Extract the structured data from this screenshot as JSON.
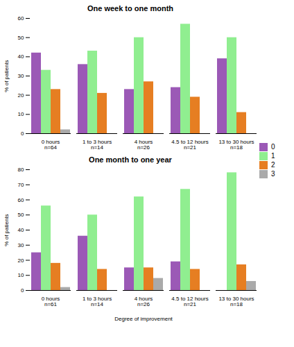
{
  "chart_data": [
    {
      "type": "bar",
      "title": "One week to one month",
      "ylabel": "% of patients",
      "categories": [
        "0 hours\nn=64",
        "1 to 3 hours\nn=14",
        "4 hours\nn=26",
        "4.5 to 12 hours\nn=21",
        "13 to 30 hours\nn=18"
      ],
      "series": [
        {
          "name": "0",
          "color": "#9b59b6",
          "values": [
            42,
            36,
            23,
            24,
            39
          ]
        },
        {
          "name": "1",
          "color": "#90ee90",
          "values": [
            33,
            43,
            50,
            57,
            50
          ]
        },
        {
          "name": "2",
          "color": "#e67e22",
          "values": [
            23,
            21,
            27,
            19,
            11
          ]
        },
        {
          "name": "3",
          "color": "#aaaaaa",
          "values": [
            2,
            0,
            0,
            0,
            0
          ]
        }
      ],
      "ylim": [
        0,
        60
      ],
      "yticks": [
        0,
        10,
        20,
        30,
        40,
        50,
        60
      ],
      "grid": false,
      "legend": "right"
    },
    {
      "type": "bar",
      "title": "One month to one year",
      "xlabel": "Degree of improvement",
      "ylabel": "% of patients",
      "categories": [
        "0 hours\nn=61",
        "1 to 3 hours\nn=14",
        "4 hours\nn=26",
        "4.5 to 12 hours\nn=21",
        "13 to 30 hours\nn=18"
      ],
      "series": [
        {
          "name": "0",
          "color": "#9b59b6",
          "values": [
            25,
            36,
            15,
            19,
            0
          ]
        },
        {
          "name": "1",
          "color": "#90ee90",
          "values": [
            56,
            50,
            62,
            67,
            78
          ]
        },
        {
          "name": "2",
          "color": "#e67e22",
          "values": [
            18,
            14,
            15,
            14,
            17
          ]
        },
        {
          "name": "3",
          "color": "#aaaaaa",
          "values": [
            2,
            0,
            8,
            0,
            6
          ]
        }
      ],
      "ylim": [
        0,
        80
      ],
      "yticks": [
        0,
        10,
        20,
        30,
        40,
        50,
        60,
        70,
        80
      ],
      "grid": false
    }
  ]
}
